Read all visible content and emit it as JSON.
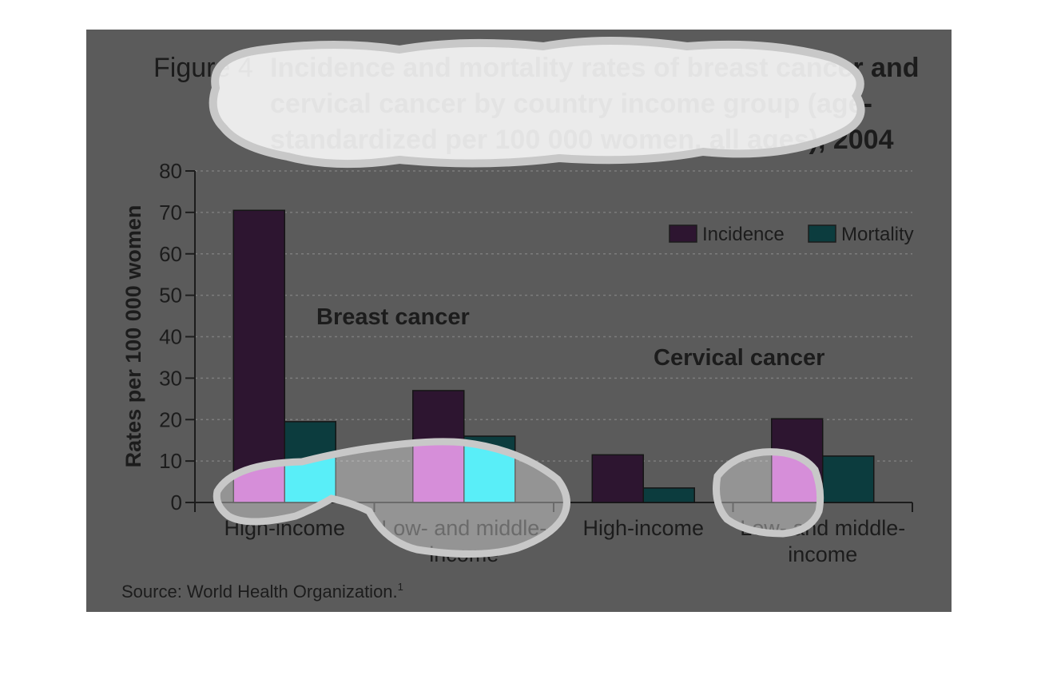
{
  "figure": {
    "label": "Figure 4",
    "title_lines": [
      "Incidence and mortality rates of breast cancer and",
      "cervical cancer by country income group (age-",
      "standardized per 100 000 women, all ages), 2004"
    ],
    "source": "Source: World Health Organization.",
    "source_note": "1"
  },
  "colors": {
    "incidence": "#2d1530",
    "mortality": "#0c3c3e",
    "highlight_incidence": "#c052c5",
    "highlight_mortality": "#00e5f5",
    "panel": "#5b5b5b",
    "grid": "#7d7d7d",
    "text": "#1c1c1c"
  },
  "chart_data": {
    "type": "bar",
    "title": "Incidence and mortality rates of breast cancer and cervical cancer by country income group (age-standardized per 100 000 women, all ages), 2004",
    "ylabel": "Rates per 100 000 women",
    "xlabel": "",
    "ylim": [
      0,
      80
    ],
    "yticks": [
      0,
      10,
      20,
      30,
      40,
      50,
      60,
      70,
      80
    ],
    "grid": true,
    "legend_position": "top-right",
    "groups": [
      {
        "label": "Breast cancer",
        "categories": [
          "High-income",
          "Low- and middle-income"
        ]
      },
      {
        "label": "Cervical cancer",
        "categories": [
          "High-income",
          "Low- and middle-income"
        ]
      }
    ],
    "categories": [
      [
        "High-income"
      ],
      [
        "Low- and middle-",
        "income"
      ],
      [
        "High-income"
      ],
      [
        "Low- and middle-",
        "income"
      ]
    ],
    "series": [
      {
        "name": "Incidence",
        "values": [
          70.5,
          27,
          11.5,
          20.2
        ]
      },
      {
        "name": "Mortality",
        "values": [
          19.5,
          16,
          3.5,
          11.2
        ]
      }
    ]
  }
}
